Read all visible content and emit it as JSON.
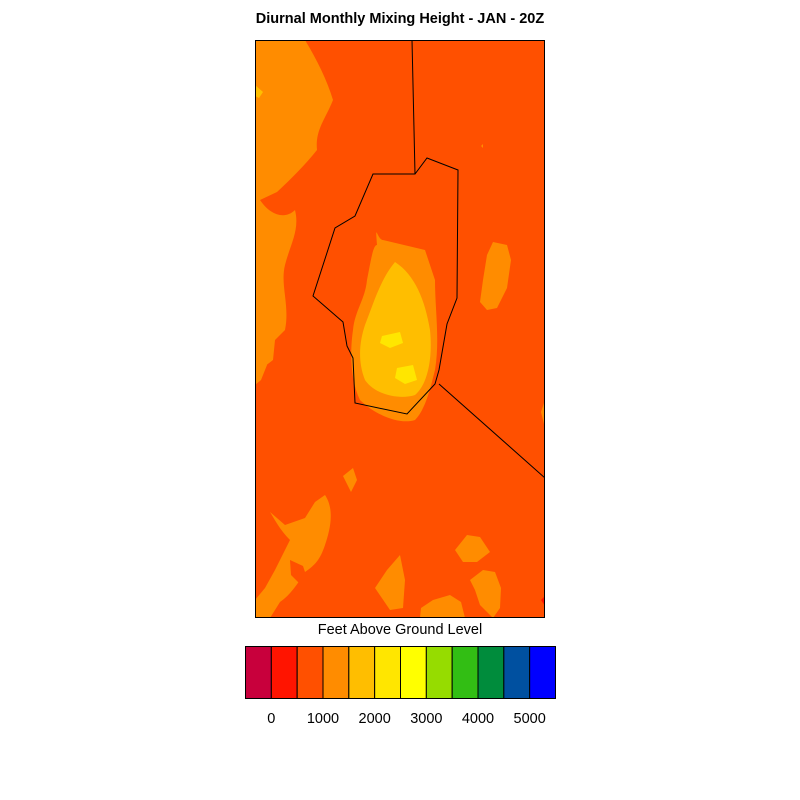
{
  "title": "Diurnal Monthly Mixing Height - JAN - 20Z",
  "colorbar": {
    "title": "Feet Above Ground Level",
    "colors": [
      "#c8003c",
      "#ff1400",
      "#ff5000",
      "#ff8c00",
      "#ffbe00",
      "#ffe600",
      "#ffff00",
      "#96dc00",
      "#32be14",
      "#008c3c",
      "#0050a0",
      "#0000ff"
    ],
    "tick_labels": [
      "0",
      "1000",
      "2000",
      "3000",
      "4000",
      "5000"
    ]
  },
  "map": {
    "background_color": "#ff5000",
    "fill_colors": {
      "orange": "#ff8c00",
      "amber": "#ffbe00",
      "yellow": "#ffe600",
      "red": "#ff1400"
    },
    "boundary_color": "#000000"
  }
}
